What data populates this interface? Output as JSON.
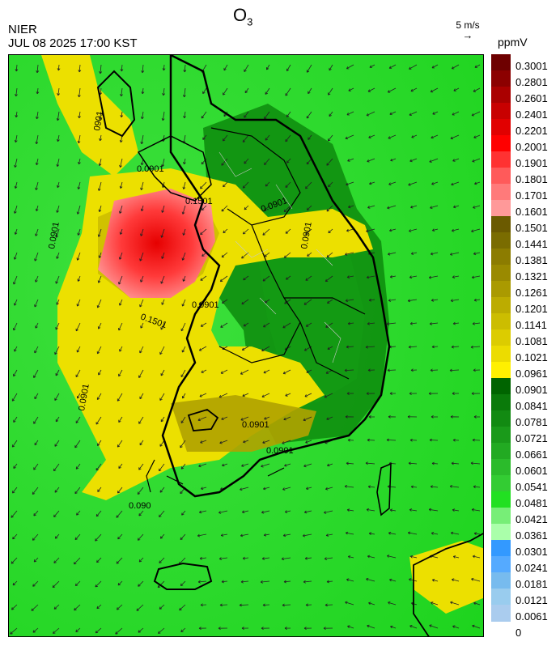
{
  "header": {
    "title_main": "O",
    "title_sub": "3",
    "org": "NIER",
    "timestamp": "JUL 08 2025 17:00 KST",
    "wind_ref": "5 m/s",
    "unit": "ppmV"
  },
  "legend": {
    "labels": [
      "0.3001",
      "0.2801",
      "0.2601",
      "0.2401",
      "0.2201",
      "0.2001",
      "0.1901",
      "0.1801",
      "0.1701",
      "0.1601",
      "0.1501",
      "0.1441",
      "0.1381",
      "0.1321",
      "0.1261",
      "0.1201",
      "0.1141",
      "0.1081",
      "0.1021",
      "0.0961",
      "0.0901",
      "0.0841",
      "0.0781",
      "0.0721",
      "0.0661",
      "0.0601",
      "0.0541",
      "0.0481",
      "0.0421",
      "0.0361",
      "0.0301",
      "0.0241",
      "0.0181",
      "0.0121",
      "0.0061",
      "0"
    ],
    "colors": [
      "#6e0000",
      "#8c0000",
      "#aa0000",
      "#c80000",
      "#e10000",
      "#ff0000",
      "#ff3232",
      "#ff5a5a",
      "#ff7a7a",
      "#ff9999",
      "#6b5a00",
      "#7a6c00",
      "#8c7c00",
      "#9a8a00",
      "#aa9a00",
      "#bcac00",
      "#ccbd00",
      "#dccc00",
      "#ecdc00",
      "#fff000",
      "#006400",
      "#0a7a0a",
      "#128a12",
      "#1a9a1a",
      "#22aa22",
      "#2bbb2b",
      "#33cc33",
      "#22e022",
      "#77ee77",
      "#aaffaa",
      "#3399ff",
      "#55aaff",
      "#77bbee",
      "#99ccee",
      "#aaccee"
    ]
  },
  "contour_labels": [
    "0901",
    "0.1501",
    "0.0901",
    "0.1501",
    "0.0901",
    "0.0901",
    "0.0901",
    "0.0901",
    "0.0901",
    "0.0901",
    "0.0901",
    "0.090"
  ],
  "colors": {
    "bg_green": "#22dd22",
    "coast": "#000000",
    "map_frame": "#000000"
  }
}
